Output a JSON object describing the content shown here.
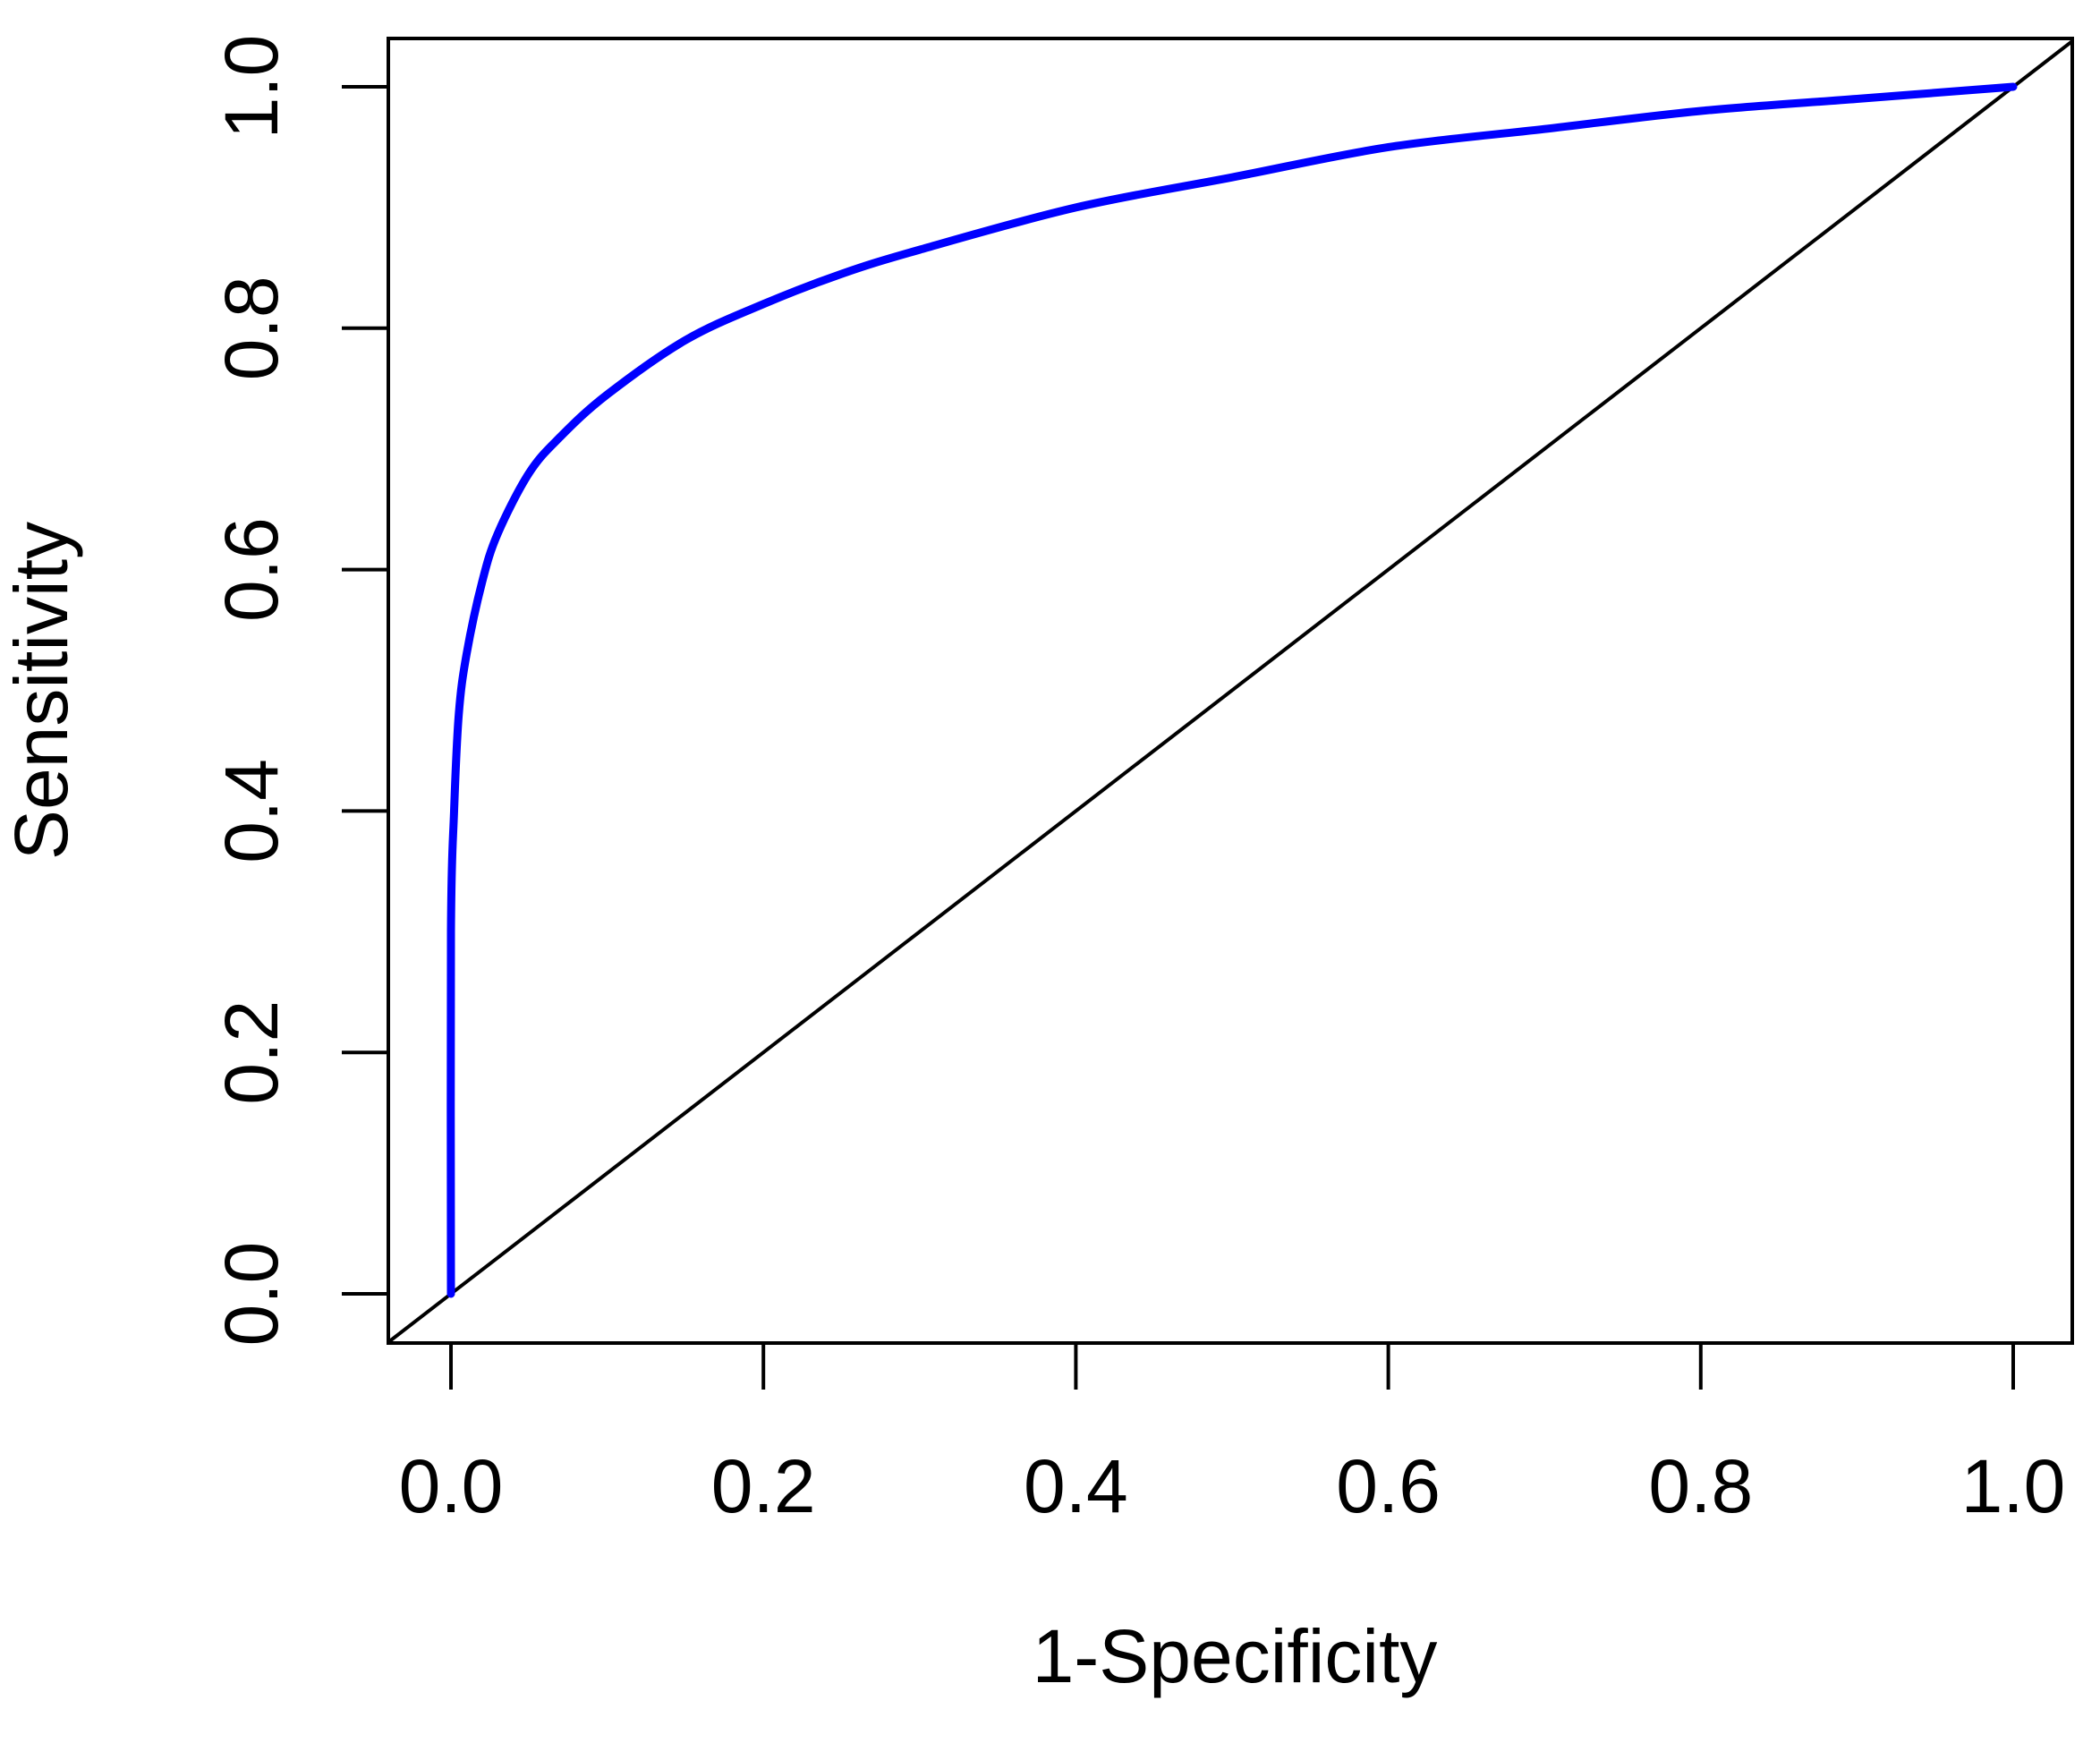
{
  "chart_data": {
    "type": "line",
    "title": "",
    "xlabel": "1-Specificity",
    "ylabel": "Sensitivity",
    "xlim": [
      0.0,
      1.0
    ],
    "ylim": [
      0.0,
      1.0
    ],
    "x_ticks": [
      "0.0",
      "0.2",
      "0.4",
      "0.6",
      "0.8",
      "1.0"
    ],
    "y_ticks": [
      "0.0",
      "0.2",
      "0.4",
      "0.6",
      "0.8",
      "1.0"
    ],
    "grid": false,
    "legend": "none",
    "series": [
      {
        "color": "#0000ff",
        "x": [
          0.0,
          0.0,
          0.002,
          0.005,
          0.01,
          0.02,
          0.03,
          0.05,
          0.07,
          0.1,
          0.15,
          0.2,
          0.25,
          0.3,
          0.4,
          0.5,
          0.6,
          0.7,
          0.8,
          0.9,
          1.0
        ],
        "y": [
          0.0,
          0.3,
          0.4,
          0.48,
          0.53,
          0.59,
          0.63,
          0.68,
          0.71,
          0.745,
          0.79,
          0.82,
          0.845,
          0.865,
          0.9,
          0.925,
          0.95,
          0.965,
          0.98,
          0.99,
          1.0
        ]
      },
      {
        "color": "#000000",
        "x": [
          0.0,
          1.0
        ],
        "y": [
          0.0,
          1.0
        ]
      }
    ]
  }
}
